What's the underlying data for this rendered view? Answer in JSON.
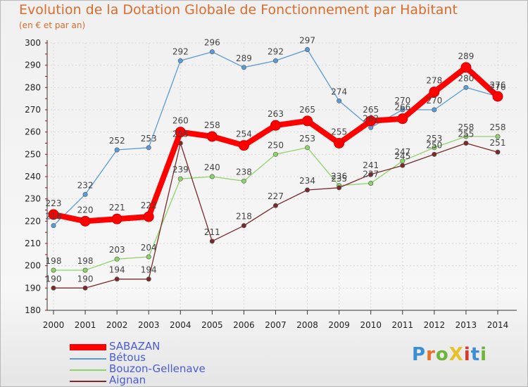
{
  "header": {
    "title": "Evolution de la Dotation Globale de Fonctionnement par Habitant",
    "subtitle": "(en € et par an)"
  },
  "brand": {
    "logo_text": "ProXiti",
    "colors": [
      "#3b8fd6",
      "#e8712a",
      "#6fb43a",
      "#e8c02a",
      "#d8392c",
      "#3b8fd6",
      "#6fb43a"
    ]
  },
  "chart_data": {
    "type": "line",
    "x": [
      "2000",
      "2001",
      "2002",
      "2003",
      "2004",
      "2005",
      "2006",
      "2007",
      "2008",
      "2009",
      "2010",
      "2011",
      "2012",
      "2013",
      "2014"
    ],
    "ylim": [
      180,
      300
    ],
    "yticks": [
      180,
      190,
      200,
      210,
      220,
      230,
      240,
      250,
      260,
      270,
      280,
      290,
      300
    ],
    "grid": true,
    "legend_position": "bottom-left",
    "series": [
      {
        "name": "Bétous",
        "color": "#5b9bd5",
        "values": [
          218,
          232,
          252,
          253,
          292,
          296,
          289,
          292,
          297,
          274,
          262,
          270,
          270,
          280,
          276
        ]
      },
      {
        "name": "Bouzon-Gellenave",
        "color": "#8ed36a",
        "values": [
          198,
          198,
          203,
          204,
          239,
          240,
          238,
          250,
          253,
          236,
          237,
          247,
          253,
          258,
          258
        ]
      },
      {
        "name": "Aignan",
        "color": "#7a2a2a",
        "values": [
          190,
          190,
          194,
          194,
          255,
          211,
          218,
          227,
          234,
          235,
          241,
          245,
          250,
          255,
          251
        ]
      },
      {
        "name": "SABAZAN",
        "color": "#ff0000",
        "values": [
          223,
          220,
          221,
          222,
          260,
          258,
          254,
          263,
          265,
          255,
          265,
          266,
          278,
          289,
          276
        ]
      }
    ],
    "legend_order": [
      "SABAZAN",
      "Bétous",
      "Bouzon-Gellenave",
      "Aignan"
    ]
  }
}
